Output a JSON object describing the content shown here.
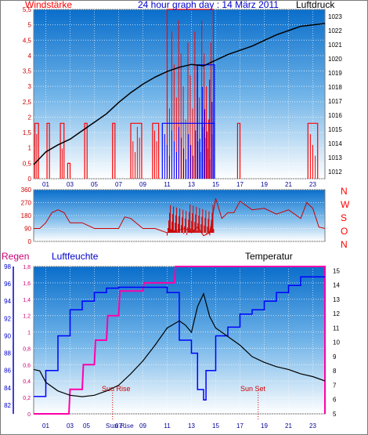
{
  "chart_data": [
    {
      "type": "line",
      "title": "24 hour graph day : 14 März 2011",
      "y_left_label": "Windstärke",
      "y_right_label": "Luftdruck",
      "x_ticks": [
        "01",
        "03",
        "05",
        "07",
        "09",
        "11",
        "13",
        "15",
        "17",
        "19",
        "21",
        "23"
      ],
      "x_range": [
        0,
        24
      ],
      "y_left_ticks": [
        "0",
        "0,5",
        "1",
        "1,5",
        "2",
        "2,5",
        "3",
        "3,5",
        "4",
        "4,5",
        "5",
        "5,5"
      ],
      "y_left_range": [
        0,
        5.5
      ],
      "y_right_ticks": [
        "1012",
        "1013",
        "1014",
        "1015",
        "1016",
        "1017",
        "1018",
        "1019",
        "1020",
        "1021",
        "1022",
        "1023"
      ],
      "y_right_range": [
        1011.5,
        1023.5
      ],
      "grid": true,
      "series": [
        {
          "name": "Luftdruck",
          "color": "#000000",
          "x": [
            0,
            1,
            2,
            3,
            4,
            5,
            6,
            7,
            8,
            9,
            10,
            11,
            12,
            13,
            14,
            15,
            16,
            17,
            18,
            19,
            20,
            21,
            22,
            23,
            24
          ],
          "y": [
            1012.5,
            1013.4,
            1013.9,
            1014.3,
            1014.9,
            1015.5,
            1016.1,
            1016.9,
            1017.6,
            1018.2,
            1018.7,
            1019.1,
            1019.4,
            1019.6,
            1019.5,
            1019.9,
            1020.3,
            1020.6,
            1020.9,
            1021.3,
            1021.7,
            1022.0,
            1022.3,
            1022.4,
            1022.5
          ]
        },
        {
          "name": "wind-red",
          "color": "#ff0000",
          "bursts": [
            [
              0.1,
              0.4,
              1.8
            ],
            [
              1.1,
              1.3,
              1.8
            ],
            [
              2.2,
              2.5,
              1.8
            ],
            [
              2.8,
              3.0,
              0.5
            ],
            [
              4.2,
              4.4,
              1.8
            ],
            [
              6.5,
              6.7,
              1.8
            ],
            [
              8.0,
              8.9,
              1.8
            ],
            [
              9.8,
              10.3,
              1.8
            ],
            [
              11.0,
              14.8,
              5.5
            ],
            [
              16.8,
              17.0,
              1.8
            ],
            [
              22.6,
              23.4,
              1.8
            ]
          ]
        },
        {
          "name": "wind-blue",
          "color": "#0000ff",
          "bursts": [
            [
              10.6,
              14.9,
              1.8
            ],
            [
              13.5,
              14.9,
              3.7
            ]
          ]
        }
      ]
    },
    {
      "type": "line",
      "y_right_label": "N W S O N",
      "y_left_ticks": [
        "0",
        "90",
        "180",
        "270",
        "360"
      ],
      "y_range": [
        0,
        360
      ],
      "grid": true,
      "series": [
        {
          "name": "direction",
          "color": "#cc0000",
          "x": [
            0,
            0.5,
            1.0,
            1.5,
            2.0,
            2.5,
            3.0,
            3.5,
            4.0,
            5.0,
            5.5,
            6.0,
            7.0,
            7.5,
            8.0,
            9.0,
            10.0,
            11.0,
            12.0,
            12.5,
            13.0,
            13.5,
            14.0,
            14.5,
            15.0,
            15.5,
            16.0,
            16.5,
            17.0,
            18.0,
            19.0,
            20.0,
            21.0,
            22.0,
            22.5,
            23.0,
            23.5,
            24.0
          ],
          "y": [
            90,
            90,
            130,
            200,
            220,
            200,
            130,
            130,
            130,
            90,
            90,
            90,
            90,
            170,
            160,
            90,
            90,
            60,
            80,
            90,
            60,
            100,
            40,
            60,
            300,
            160,
            200,
            200,
            280,
            220,
            230,
            190,
            220,
            160,
            270,
            230,
            100,
            90
          ]
        }
      ]
    },
    {
      "type": "line",
      "title": "",
      "labels_top": {
        "left": "Regen",
        "middle": "Luftfeuchte",
        "right": "Temperatur"
      },
      "annotations": [
        "Sun Rise",
        "Sun Set"
      ],
      "x_ticks": [
        "01",
        "03",
        "05",
        "07",
        "09",
        "11",
        "13",
        "15",
        "17",
        "19",
        "21",
        "23"
      ],
      "x_range": [
        0,
        24
      ],
      "y_left_humidity_ticks": [
        "82",
        "84",
        "86",
        "88",
        "90",
        "92",
        "94",
        "96",
        "98"
      ],
      "y_left_rain_ticks": [
        "0",
        "0,2",
        "0,4",
        "0,6",
        "0,8",
        "1",
        "1,2",
        "1,4",
        "1,6",
        "1,8"
      ],
      "y_right_ticks": [
        "5",
        "6",
        "7",
        "8",
        "9",
        "10",
        "11",
        "12",
        "13",
        "14",
        "15"
      ],
      "grid": true,
      "series": [
        {
          "name": "Regen",
          "color": "#ff00aa",
          "x": [
            0,
            2.9,
            3.0,
            4.0,
            4.1,
            5.0,
            5.1,
            6.0,
            6.1,
            7.0,
            7.1,
            9.0,
            9.1,
            11.6,
            11.7,
            24.0
          ],
          "y": [
            0,
            0,
            0.3,
            0.3,
            0.6,
            0.6,
            0.9,
            0.9,
            1.2,
            1.2,
            1.5,
            1.5,
            1.6,
            1.6,
            1.8,
            1.8
          ]
        },
        {
          "name": "Luftfeuchte",
          "color": "#0000ff",
          "x": [
            0,
            1,
            2,
            3,
            4,
            5,
            6,
            7,
            8,
            9,
            10,
            11,
            12,
            13,
            13.5,
            14,
            14.2,
            14.6,
            15,
            16,
            17,
            18,
            19,
            20,
            21,
            22,
            23,
            24
          ],
          "y": [
            83,
            86,
            90,
            93,
            94,
            95,
            95.5,
            95.6,
            95.6,
            95.6,
            95.6,
            95.0,
            89.5,
            88.0,
            83.8,
            82.6,
            86.0,
            86.0,
            90.0,
            91.0,
            92.5,
            93.0,
            94.0,
            95.0,
            95.8,
            96.8,
            96.8,
            96.8
          ]
        },
        {
          "name": "Temperatur",
          "color": "#000000",
          "x": [
            0,
            0.5,
            1,
            2,
            3,
            4,
            5,
            6,
            7,
            8,
            9,
            10,
            11,
            12,
            12.5,
            13,
            13.5,
            14,
            14.5,
            15,
            16,
            17,
            18,
            19,
            20,
            21,
            22,
            23,
            24
          ],
          "y": [
            8.1,
            8.0,
            7.2,
            6.6,
            6.3,
            6.2,
            6.3,
            6.6,
            7.0,
            7.8,
            8.7,
            9.8,
            11.0,
            11.5,
            11.2,
            10.7,
            12.5,
            13.4,
            11.8,
            11.0,
            10.4,
            9.8,
            9.0,
            8.6,
            8.3,
            8.1,
            7.8,
            7.6,
            7.3
          ]
        }
      ],
      "sun_rise_x": 6.5,
      "sun_set_x": 18.5
    }
  ]
}
